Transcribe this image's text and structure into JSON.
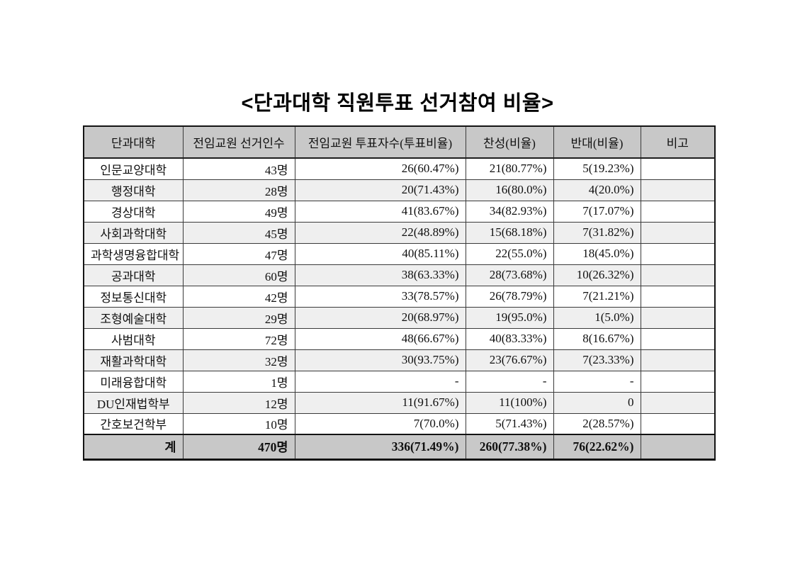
{
  "page": {
    "title": "<단과대학 직원투표 선거참여 비율>"
  },
  "table": {
    "columns": [
      "단과대학",
      "전임교원 선거인수",
      "전임교원 투표자수(투표비율)",
      "찬성(비율)",
      "반대(비율)",
      "비고"
    ],
    "rows": [
      [
        "인문교양대학",
        "43명",
        "26(60.47%)",
        "21(80.77%)",
        "5(19.23%)",
        ""
      ],
      [
        "행정대학",
        "28명",
        "20(71.43%)",
        "16(80.0%)",
        "4(20.0%)",
        ""
      ],
      [
        "경상대학",
        "49명",
        "41(83.67%)",
        "34(82.93%)",
        "7(17.07%)",
        ""
      ],
      [
        "사회과학대학",
        "45명",
        "22(48.89%)",
        "15(68.18%)",
        "7(31.82%)",
        ""
      ],
      [
        "과학생명융합대학",
        "47명",
        "40(85.11%)",
        "22(55.0%)",
        "18(45.0%)",
        ""
      ],
      [
        "공과대학",
        "60명",
        "38(63.33%)",
        "28(73.68%)",
        "10(26.32%)",
        ""
      ],
      [
        "정보통신대학",
        "42명",
        "33(78.57%)",
        "26(78.79%)",
        "7(21.21%)",
        ""
      ],
      [
        "조형예술대학",
        "29명",
        "20(68.97%)",
        "19(95.0%)",
        "1(5.0%)",
        ""
      ],
      [
        "사범대학",
        "72명",
        "48(66.67%)",
        "40(83.33%)",
        "8(16.67%)",
        ""
      ],
      [
        "재활과학대학",
        "32명",
        "30(93.75%)",
        "23(76.67%)",
        "7(23.33%)",
        ""
      ],
      [
        "미래융합대학",
        "1명",
        "-",
        "-",
        "-",
        ""
      ],
      [
        "DU인재법학부",
        "12명",
        "11(91.67%)",
        "11(100%)",
        "0",
        ""
      ],
      [
        "간호보건학부",
        "10명",
        "7(70.0%)",
        "5(71.43%)",
        "2(28.57%)",
        ""
      ]
    ],
    "total_row": [
      "계",
      "470명",
      "336(71.49%)",
      "260(77.38%)",
      "76(22.62%)",
      ""
    ]
  },
  "colors": {
    "header_bg": "#c8c8c8",
    "stripe_bg": "#efefef",
    "total_bg": "#c8c8c8",
    "border": "#3a3a3a",
    "outer_border": "#141414"
  }
}
